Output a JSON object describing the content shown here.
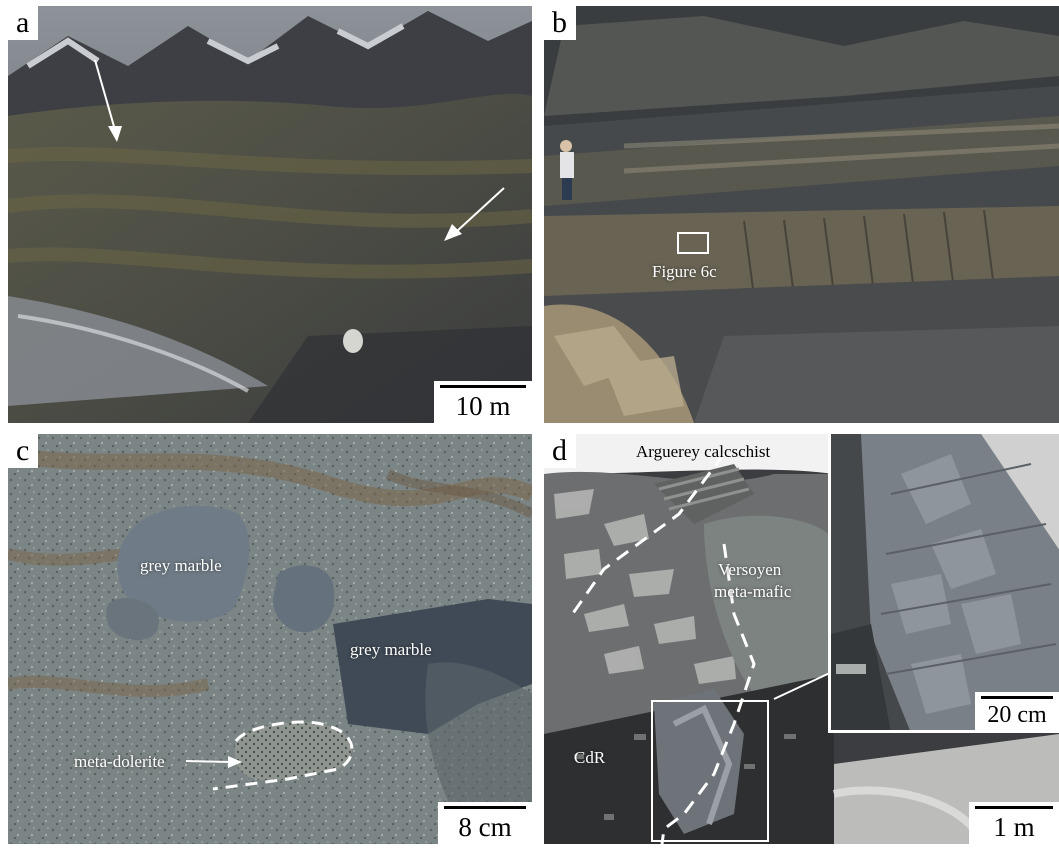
{
  "panels": {
    "a": {
      "letter": "a",
      "scale": "10 m"
    },
    "b": {
      "letter": "b",
      "callout": "Figure 6c"
    },
    "c": {
      "letter": "c",
      "scale": "8 cm",
      "labels": {
        "marble_1": "grey marble",
        "marble_2": "grey marble",
        "dolerite": "meta-dolerite"
      }
    },
    "d": {
      "letter": "d",
      "scale": "1 m",
      "inset_scale": "20 cm",
      "labels": {
        "calcschist": "Arguerey calcschist",
        "metamafic_1": "Versoyen",
        "metamafic_2": "meta-mafic",
        "cdr": "CdR"
      }
    }
  },
  "colors": {
    "background": "#ffffff",
    "annotation": "#ffffff",
    "text_dark": "#000000"
  }
}
